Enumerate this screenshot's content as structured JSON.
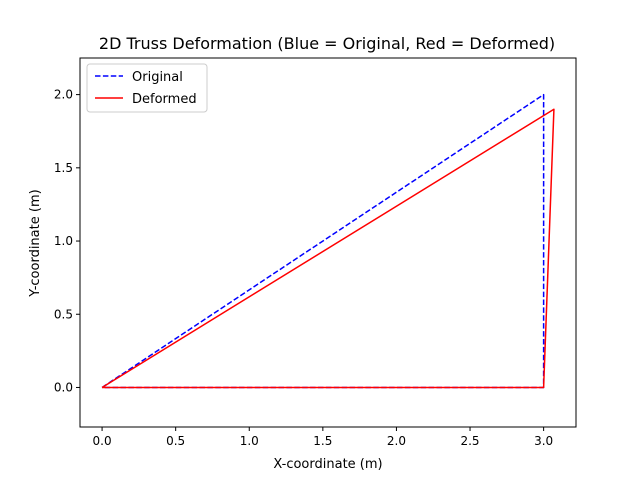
{
  "chart_data": {
    "type": "line",
    "title": "2D Truss Deformation (Blue = Original, Red = Deformed)",
    "xlabel": "X-coordinate (m)",
    "ylabel": "Y-coordinate (m)",
    "xlim": [
      -0.15,
      3.22
    ],
    "ylim": [
      -0.27,
      2.25
    ],
    "xticks": [
      0.0,
      0.5,
      1.0,
      1.5,
      2.0,
      2.5,
      3.0
    ],
    "xtick_labels": [
      "0.0",
      "0.5",
      "1.0",
      "1.5",
      "2.0",
      "2.5",
      "3.0"
    ],
    "yticks": [
      0.0,
      0.5,
      1.0,
      1.5,
      2.0
    ],
    "ytick_labels": [
      "0.0",
      "0.5",
      "1.0",
      "1.5",
      "2.0"
    ],
    "grid": false,
    "legend_position": "top-left",
    "series": [
      {
        "name": "Original",
        "color": "#0000ff",
        "dash": "dashed",
        "points": [
          [
            0,
            0
          ],
          [
            3.0,
            2.0
          ],
          [
            3.0,
            0
          ],
          [
            0,
            0
          ]
        ]
      },
      {
        "name": "Deformed",
        "color": "#ff0000",
        "dash": "solid",
        "points": [
          [
            0,
            0
          ],
          [
            3.07,
            1.9
          ],
          [
            3.0,
            0
          ],
          [
            0,
            0
          ]
        ]
      }
    ]
  }
}
